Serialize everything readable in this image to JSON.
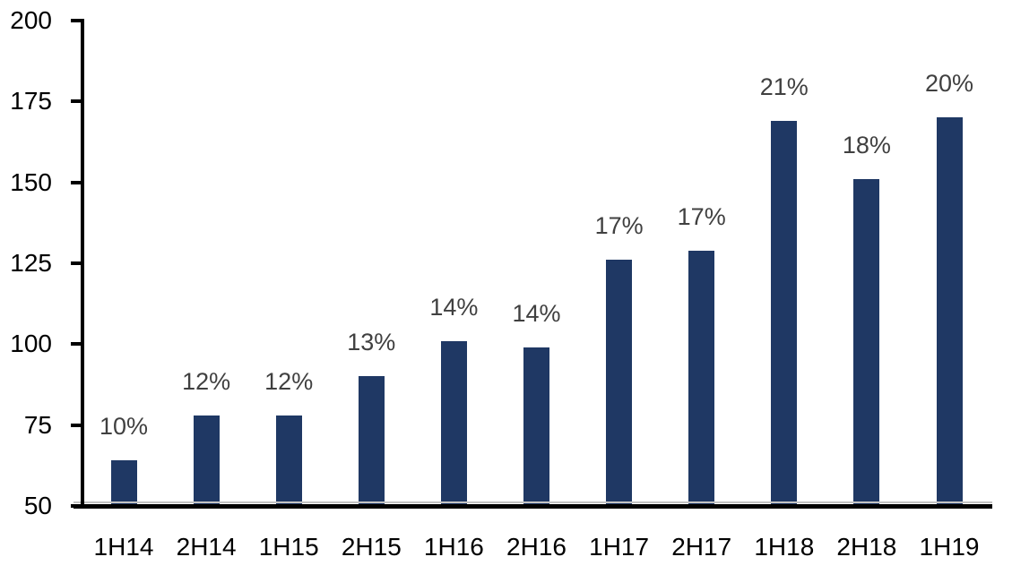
{
  "chart_data": {
    "type": "bar",
    "categories": [
      "1H14",
      "2H14",
      "1H15",
      "2H15",
      "1H16",
      "2H16",
      "1H17",
      "2H17",
      "1H18",
      "2H18",
      "1H19"
    ],
    "values": [
      64,
      78,
      78,
      90,
      101,
      99,
      126,
      129,
      169,
      151,
      170
    ],
    "data_labels": [
      "10%",
      "12%",
      "12%",
      "13%",
      "14%",
      "14%",
      "17%",
      "17%",
      "21%",
      "18%",
      "20%"
    ],
    "yticks": [
      50,
      75,
      100,
      125,
      150,
      175,
      200
    ],
    "ylim": [
      50,
      200
    ],
    "xlabel": "",
    "ylabel": "",
    "grid": "off",
    "legend": "none",
    "colors": {
      "bar": "#1F3864",
      "data_label": "#404040",
      "axis": "#000000",
      "axis_shadow": "#c3c3c3"
    }
  }
}
